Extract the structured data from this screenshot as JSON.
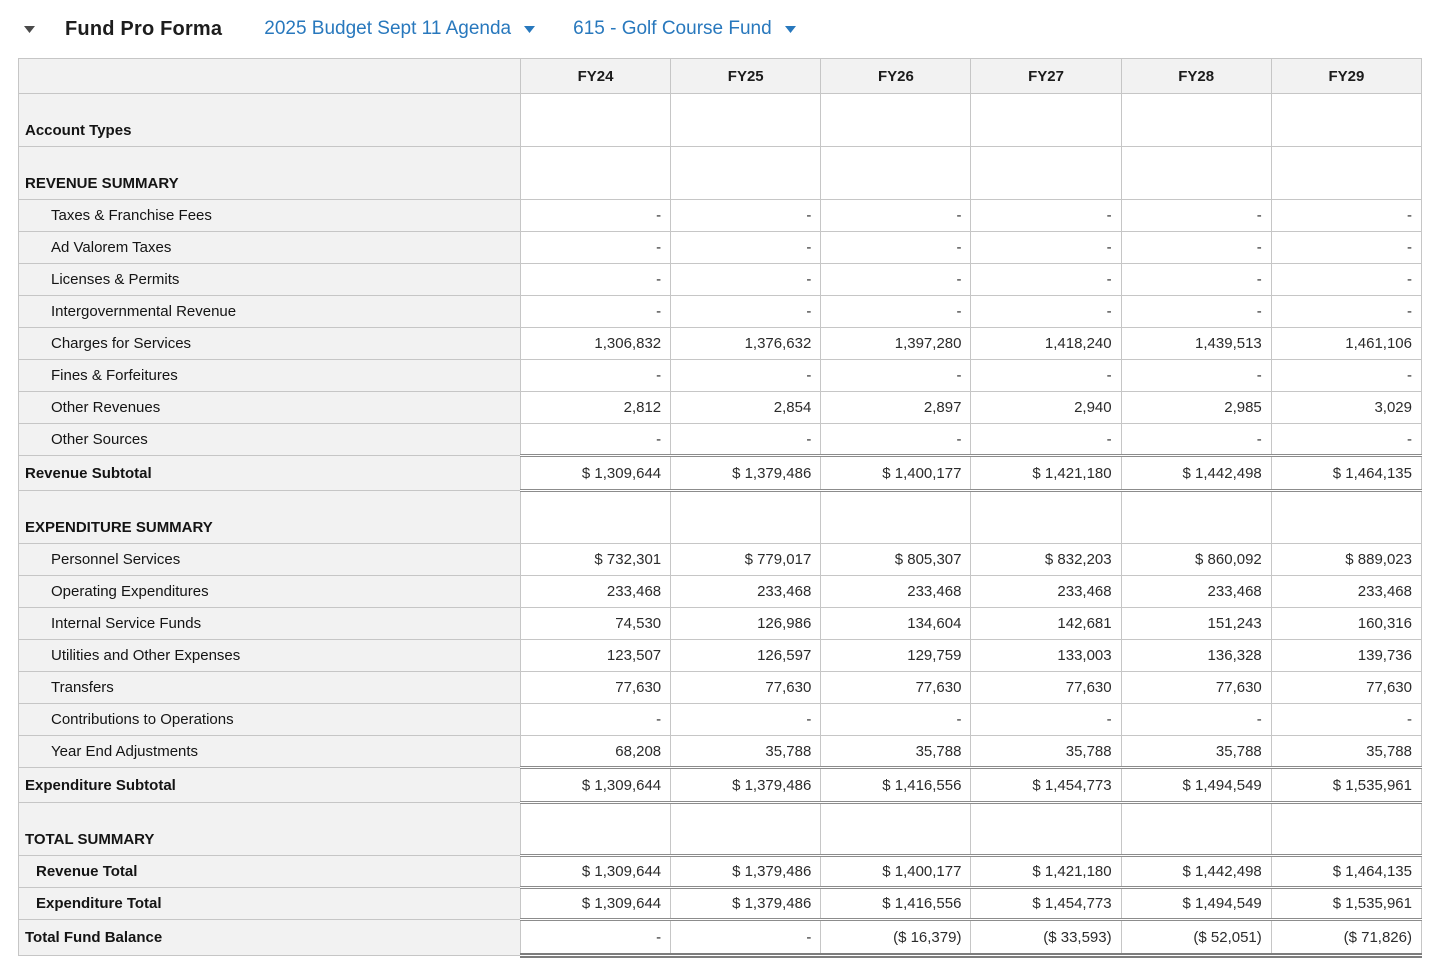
{
  "header": {
    "title": "Fund Pro Forma",
    "budget_dropdown": {
      "label": "2025 Budget Sept 11 Agenda"
    },
    "fund_dropdown": {
      "label": "615 - Golf Course Fund"
    }
  },
  "colors": {
    "link_blue": "#2878bd",
    "grid_border": "#c6c6c6",
    "header_grey": "#f2f2f2",
    "double_rule": "#8c8c8c"
  },
  "table": {
    "columns": [
      "FY24",
      "FY25",
      "FY26",
      "FY27",
      "FY28",
      "FY29"
    ],
    "rows": [
      {
        "type": "section",
        "label": "Account Types",
        "values": [
          "",
          "",
          "",
          "",
          "",
          ""
        ]
      },
      {
        "type": "section",
        "label": "REVENUE SUMMARY",
        "values": [
          "",
          "",
          "",
          "",
          "",
          ""
        ]
      },
      {
        "type": "detail",
        "label": "Taxes & Franchise Fees",
        "values": [
          "-",
          "-",
          "-",
          "-",
          "-",
          "-"
        ]
      },
      {
        "type": "detail",
        "label": "Ad Valorem Taxes",
        "values": [
          "-",
          "-",
          "-",
          "-",
          "-",
          "-"
        ]
      },
      {
        "type": "detail",
        "label": "Licenses & Permits",
        "values": [
          "-",
          "-",
          "-",
          "-",
          "-",
          "-"
        ]
      },
      {
        "type": "detail",
        "label": "Intergovernmental Revenue",
        "values": [
          "-",
          "-",
          "-",
          "-",
          "-",
          "-"
        ]
      },
      {
        "type": "detail",
        "label": "Charges for Services",
        "values": [
          "1,306,832",
          "1,376,632",
          "1,397,280",
          "1,418,240",
          "1,439,513",
          "1,461,106"
        ]
      },
      {
        "type": "detail",
        "label": "Fines & Forfeitures",
        "values": [
          "-",
          "-",
          "-",
          "-",
          "-",
          "-"
        ]
      },
      {
        "type": "detail",
        "label": "Other Revenues",
        "values": [
          "2,812",
          "2,854",
          "2,897",
          "2,940",
          "2,985",
          "3,029"
        ]
      },
      {
        "type": "detail",
        "label": "Other Sources",
        "values": [
          "-",
          "-",
          "-",
          "-",
          "-",
          "-"
        ]
      },
      {
        "type": "subtotal",
        "label": "Revenue Subtotal",
        "values": [
          "$ 1,309,644",
          "$ 1,379,486",
          "$ 1,400,177",
          "$ 1,421,180",
          "$ 1,442,498",
          "$ 1,464,135"
        ]
      },
      {
        "type": "section",
        "label": "EXPENDITURE SUMMARY",
        "values": [
          "",
          "",
          "",
          "",
          "",
          ""
        ]
      },
      {
        "type": "detail",
        "label": "Personnel Services",
        "values": [
          "$ 732,301",
          "$ 779,017",
          "$ 805,307",
          "$ 832,203",
          "$ 860,092",
          "$ 889,023"
        ]
      },
      {
        "type": "detail",
        "label": "Operating Expenditures",
        "values": [
          "233,468",
          "233,468",
          "233,468",
          "233,468",
          "233,468",
          "233,468"
        ]
      },
      {
        "type": "detail",
        "label": "Internal Service Funds",
        "values": [
          "74,530",
          "126,986",
          "134,604",
          "142,681",
          "151,243",
          "160,316"
        ]
      },
      {
        "type": "detail",
        "label": "Utilities and Other Expenses",
        "values": [
          "123,507",
          "126,597",
          "129,759",
          "133,003",
          "136,328",
          "139,736"
        ]
      },
      {
        "type": "detail",
        "label": "Transfers",
        "values": [
          "77,630",
          "77,630",
          "77,630",
          "77,630",
          "77,630",
          "77,630"
        ]
      },
      {
        "type": "detail",
        "label": "Contributions to Operations",
        "values": [
          "-",
          "-",
          "-",
          "-",
          "-",
          "-"
        ]
      },
      {
        "type": "detail",
        "label": "Year End Adjustments",
        "values": [
          "68,208",
          "35,788",
          "35,788",
          "35,788",
          "35,788",
          "35,788"
        ]
      },
      {
        "type": "subtotal",
        "label": "Expenditure Subtotal",
        "values": [
          "$ 1,309,644",
          "$ 1,379,486",
          "$ 1,416,556",
          "$ 1,454,773",
          "$ 1,494,549",
          "$ 1,535,961"
        ]
      },
      {
        "type": "section",
        "label": "TOTAL SUMMARY",
        "values": [
          "",
          "",
          "",
          "",
          "",
          ""
        ]
      },
      {
        "type": "total",
        "label": "Revenue Total",
        "values": [
          "$ 1,309,644",
          "$ 1,379,486",
          "$ 1,400,177",
          "$ 1,421,180",
          "$ 1,442,498",
          "$ 1,464,135"
        ]
      },
      {
        "type": "total",
        "label": "Expenditure Total",
        "values": [
          "$ 1,309,644",
          "$ 1,379,486",
          "$ 1,416,556",
          "$ 1,454,773",
          "$ 1,494,549",
          "$ 1,535,961"
        ]
      },
      {
        "type": "grand",
        "label": "Total Fund Balance",
        "values": [
          "-",
          "-",
          "($ 16,379)",
          "($ 33,593)",
          "($ 52,051)",
          "($ 71,826)"
        ]
      }
    ]
  }
}
